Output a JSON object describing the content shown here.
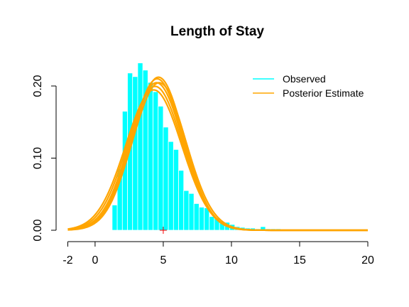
{
  "chart_data": {
    "type": "histogram",
    "title": "Length of Stay",
    "xlabel": "",
    "ylabel": "",
    "xlim": [
      -2,
      20
    ],
    "ylim": [
      0,
      0.24
    ],
    "x_ticks": [
      -2,
      0,
      5,
      10,
      15,
      20
    ],
    "y_ticks": [
      0.0,
      0.1,
      0.2
    ],
    "y_tick_labels": [
      "0.00",
      "0.10",
      "0.20"
    ],
    "legend": {
      "position": "top-right",
      "entries": [
        {
          "label": "Observed",
          "color": "#00FFFF"
        },
        {
          "label": "Posterior Estimate",
          "color": "#FFA500"
        }
      ]
    },
    "histogram": {
      "name": "Observed",
      "color": "#00FFFF",
      "bin_width": 0.375,
      "bin_starts": [
        1.25,
        1.625,
        2.0,
        2.375,
        2.75,
        3.125,
        3.5,
        3.875,
        4.25,
        4.625,
        5.0,
        5.375,
        5.75,
        6.125,
        6.5,
        6.875,
        7.25,
        7.625,
        8.0,
        8.375,
        8.75,
        9.125,
        9.5,
        9.875,
        10.25,
        10.625,
        11.0,
        11.375,
        11.75,
        12.125,
        12.5,
        12.875,
        13.25,
        13.625,
        14.0,
        14.375,
        14.75,
        15.125
      ],
      "densities": [
        0.035,
        0.085,
        0.165,
        0.218,
        0.213,
        0.232,
        0.222,
        0.205,
        0.192,
        0.172,
        0.143,
        0.123,
        0.112,
        0.083,
        0.055,
        0.051,
        0.037,
        0.032,
        0.031,
        0.019,
        0.017,
        0.012,
        0.011,
        0.008,
        0.005,
        0.004,
        0.003,
        0.003,
        0.002,
        0.005,
        0.002,
        0.002,
        0.002,
        0.001,
        0.0005,
        0.0005,
        0.0005,
        0.0005
      ]
    },
    "posterior_curves": {
      "name": "Posterior Estimate",
      "color": "#FFA500",
      "x_min": -2,
      "x_max": 20,
      "curves": [
        {
          "mean": 4.5,
          "sd": 1.95
        },
        {
          "mean": 4.55,
          "sd": 1.9
        },
        {
          "mean": 4.65,
          "sd": 1.88
        },
        {
          "mean": 4.4,
          "sd": 2.0
        },
        {
          "mean": 4.7,
          "sd": 1.95
        },
        {
          "mean": 4.3,
          "sd": 2.05
        }
      ]
    },
    "marker": {
      "x": 5,
      "y": 0,
      "symbol": "+",
      "color": "#FF0000"
    }
  }
}
